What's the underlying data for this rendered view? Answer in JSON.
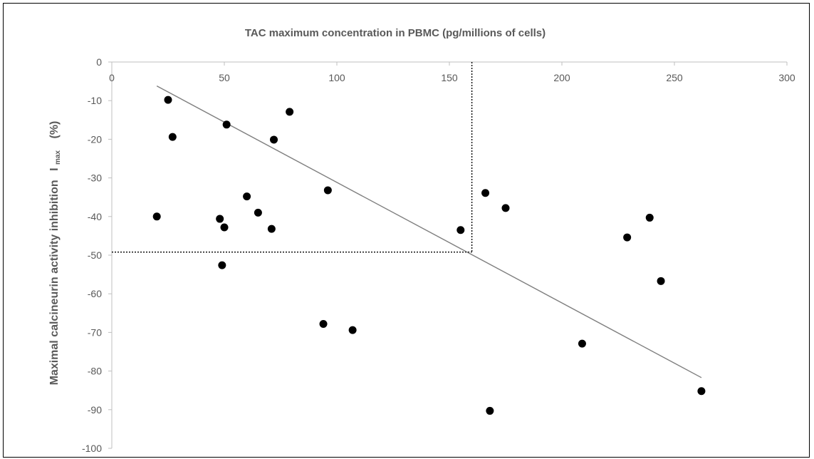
{
  "chart_data": {
    "type": "scatter",
    "title": "TAC maximum concentration in PBMC (pg/millions of cells)",
    "ylabel": {
      "main": "Maximal calcineurin activity inhibition",
      "symbol": "I",
      "subscript": "max",
      "unit": "(%)"
    },
    "xlabel": "",
    "xlim": [
      0,
      300
    ],
    "ylim": [
      -100,
      0
    ],
    "x_ticks": [
      0,
      50,
      100,
      150,
      200,
      250,
      300
    ],
    "y_ticks": [
      0,
      -10,
      -20,
      -30,
      -40,
      -50,
      -60,
      -70,
      -80,
      -90,
      -100
    ],
    "x_axis_position": "top",
    "grid": false,
    "legend": "none",
    "points": [
      {
        "x": 20,
        "y": -40
      },
      {
        "x": 25,
        "y": -9.8
      },
      {
        "x": 27,
        "y": -19.4
      },
      {
        "x": 48,
        "y": -40.6
      },
      {
        "x": 49,
        "y": -52.6
      },
      {
        "x": 50,
        "y": -42.8
      },
      {
        "x": 51,
        "y": -16.2
      },
      {
        "x": 60,
        "y": -34.8
      },
      {
        "x": 65,
        "y": -39
      },
      {
        "x": 71,
        "y": -43.2
      },
      {
        "x": 72,
        "y": -20.1
      },
      {
        "x": 79,
        "y": -12.9
      },
      {
        "x": 94,
        "y": -67.8
      },
      {
        "x": 96,
        "y": -33.2
      },
      {
        "x": 107,
        "y": -69.4
      },
      {
        "x": 155,
        "y": -43.5
      },
      {
        "x": 166,
        "y": -33.9
      },
      {
        "x": 168,
        "y": -90.3
      },
      {
        "x": 175,
        "y": -37.8
      },
      {
        "x": 209,
        "y": -72.9
      },
      {
        "x": 229,
        "y": -45.4
      },
      {
        "x": 239,
        "y": -40.3
      },
      {
        "x": 244,
        "y": -56.7
      },
      {
        "x": 262,
        "y": -85.2
      }
    ],
    "trendline": {
      "x": [
        20,
        262
      ],
      "y": [
        -6.2,
        -81.7
      ]
    },
    "reference_point": {
      "x": 160,
      "y": -49.2
    },
    "colors": {
      "points": "#000000",
      "trendline": "#7f7f7f",
      "reference_lines": "#000000",
      "axis": "#bfbfbf",
      "text": "#595959"
    }
  }
}
